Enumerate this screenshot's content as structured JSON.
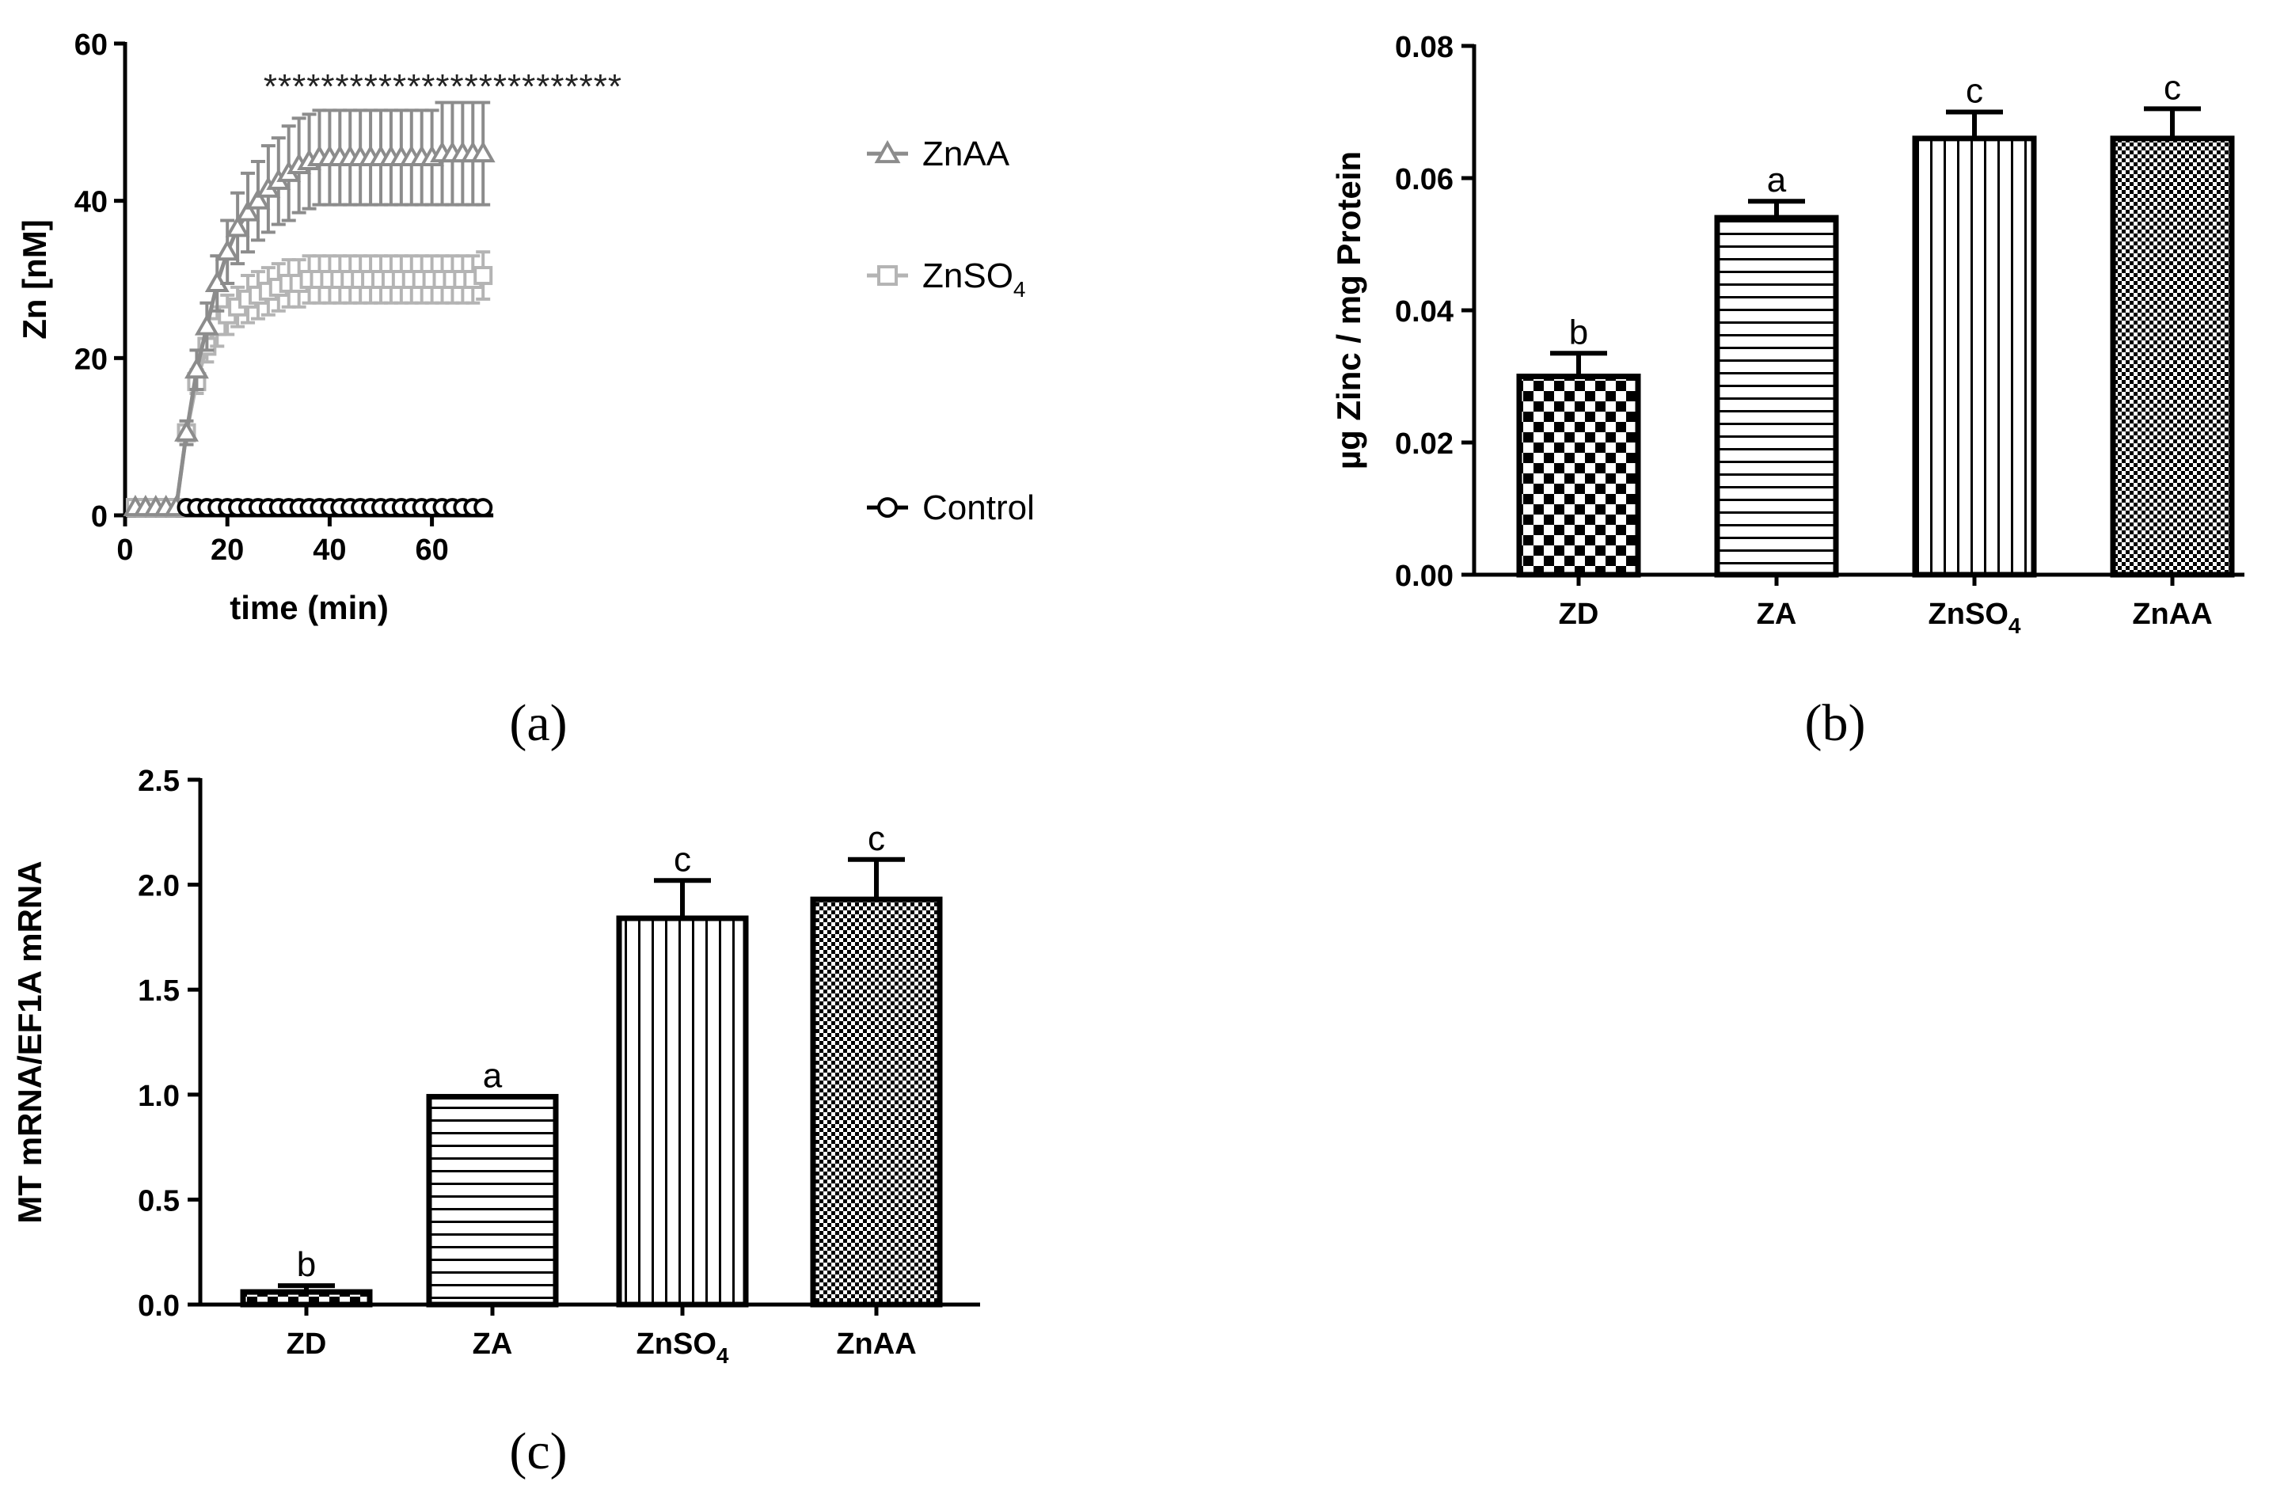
{
  "panels": [
    {
      "id": "a",
      "label": "(a)"
    },
    {
      "id": "b",
      "label": "(b)"
    },
    {
      "id": "c",
      "label": "(c)"
    }
  ],
  "colors": {
    "axis": "#000000",
    "znaa": "#8c8c8c",
    "znso4": "#b4b4b4",
    "control": "#000000",
    "bar_outline": "#000000"
  },
  "chart_data": [
    {
      "panel": "a",
      "type": "line",
      "xlabel": "time (min)",
      "ylabel": "Zn [nM]",
      "xlim": [
        0,
        72
      ],
      "ylim": [
        0,
        60
      ],
      "xticks": [
        0,
        20,
        40,
        60
      ],
      "yticks": [
        0,
        20,
        40,
        60
      ],
      "significance_marks": "*************************",
      "significance_start_min": 28,
      "series": [
        {
          "name": "ZnAA",
          "name_main": "ZnAA",
          "name_sub": "",
          "marker": "triangle",
          "color": "#8c8c8c",
          "x": [
            2,
            4,
            6,
            8,
            10,
            12,
            14,
            16,
            18,
            20,
            22,
            24,
            26,
            28,
            30,
            32,
            34,
            36,
            38,
            40,
            42,
            44,
            46,
            48,
            50,
            52,
            54,
            56,
            58,
            60,
            62,
            64,
            66,
            68,
            70
          ],
          "y": [
            1,
            1,
            1,
            1,
            1,
            10.5,
            18.5,
            24,
            29.5,
            33.5,
            36.5,
            38.5,
            40,
            41.5,
            42.5,
            43.5,
            44.5,
            45,
            45.5,
            45.5,
            45.5,
            45.5,
            45.5,
            45.5,
            45.5,
            45.5,
            45.5,
            45.5,
            45.5,
            45.5,
            46,
            46,
            46,
            46,
            46
          ],
          "err": [
            0,
            0,
            0,
            0,
            0,
            1.5,
            2.5,
            3,
            3.5,
            4,
            4.5,
            5,
            5,
            5.5,
            5.5,
            6,
            6,
            6,
            6,
            6,
            6,
            6,
            6,
            6,
            6,
            6,
            6,
            6,
            6,
            6,
            6.5,
            6.5,
            6.5,
            6.5,
            6.5
          ]
        },
        {
          "name": "ZnSO4",
          "name_main": "ZnSO",
          "name_sub": "4",
          "marker": "square",
          "color": "#b4b4b4",
          "x": [
            2,
            4,
            6,
            8,
            10,
            12,
            14,
            16,
            18,
            20,
            22,
            24,
            26,
            28,
            30,
            32,
            34,
            36,
            38,
            40,
            42,
            44,
            46,
            48,
            50,
            52,
            54,
            56,
            58,
            60,
            62,
            64,
            66,
            68,
            70
          ],
          "y": [
            1,
            1,
            1,
            1,
            1,
            10.5,
            17,
            21.5,
            24,
            25.5,
            26.5,
            27.5,
            28,
            28.5,
            29,
            29.5,
            29.5,
            30,
            30,
            30,
            30,
            30,
            30,
            30,
            30,
            30,
            30,
            30,
            30,
            30,
            30,
            30,
            30,
            30,
            30.5
          ],
          "err": [
            0,
            0,
            0,
            0,
            0,
            1,
            1.5,
            2,
            2.5,
            2.5,
            2.5,
            3,
            3,
            3,
            3,
            3,
            3,
            3,
            3,
            3,
            3,
            3,
            3,
            3,
            3,
            3,
            3,
            3,
            3,
            3,
            3,
            3,
            3,
            3,
            3
          ]
        },
        {
          "name": "Control",
          "name_main": "Control",
          "name_sub": "",
          "marker": "circle",
          "color": "#000000",
          "x": [
            12,
            14,
            16,
            18,
            20,
            22,
            24,
            26,
            28,
            30,
            32,
            34,
            36,
            38,
            40,
            42,
            44,
            46,
            48,
            50,
            52,
            54,
            56,
            58,
            60,
            62,
            64,
            66,
            68,
            70
          ],
          "y": [
            1,
            1,
            1,
            1,
            1,
            1,
            1,
            1,
            1,
            1,
            1,
            1,
            1,
            1,
            1,
            1,
            1,
            1,
            1,
            1,
            1,
            1,
            1,
            1,
            1,
            1,
            1,
            1,
            1,
            1
          ],
          "err": [
            0,
            0,
            0,
            0,
            0,
            0,
            0,
            0,
            0,
            0,
            0,
            0,
            0,
            0,
            0,
            0,
            0,
            0,
            0,
            0,
            0,
            0,
            0,
            0,
            0,
            0,
            0,
            0,
            0,
            0
          ]
        }
      ]
    },
    {
      "panel": "b",
      "type": "bar",
      "ylabel": "µg Zinc / mg Protein",
      "ylim": [
        0,
        0.08
      ],
      "yticks": [
        "0.00",
        "0.02",
        "0.04",
        "0.06",
        "0.08"
      ],
      "categories": [
        {
          "main": "ZD",
          "sub": ""
        },
        {
          "main": "ZA",
          "sub": ""
        },
        {
          "main": "ZnSO",
          "sub": "4"
        },
        {
          "main": "ZnAA",
          "sub": ""
        }
      ],
      "values": [
        0.03,
        0.054,
        0.066,
        0.066
      ],
      "errors": [
        0.0035,
        0.0025,
        0.004,
        0.0045
      ],
      "letters": [
        "b",
        "a",
        "c",
        "c"
      ],
      "patterns": [
        "check-large",
        "horizontal",
        "vertical",
        "check-small"
      ]
    },
    {
      "panel": "c",
      "type": "bar",
      "ylabel": "MT mRNA/EF1A mRNA",
      "ylim": [
        0,
        2.5
      ],
      "yticks": [
        "0.0",
        "0.5",
        "1.0",
        "1.5",
        "2.0",
        "2.5"
      ],
      "categories": [
        {
          "main": "ZD",
          "sub": ""
        },
        {
          "main": "ZA",
          "sub": ""
        },
        {
          "main": "ZnSO",
          "sub": "4"
        },
        {
          "main": "ZnAA",
          "sub": ""
        }
      ],
      "values": [
        0.06,
        0.99,
        1.84,
        1.93
      ],
      "errors": [
        0.03,
        0.0,
        0.18,
        0.19
      ],
      "letters": [
        "b",
        "a",
        "c",
        "c"
      ],
      "patterns": [
        "check-large",
        "horizontal",
        "vertical",
        "check-small"
      ]
    }
  ]
}
